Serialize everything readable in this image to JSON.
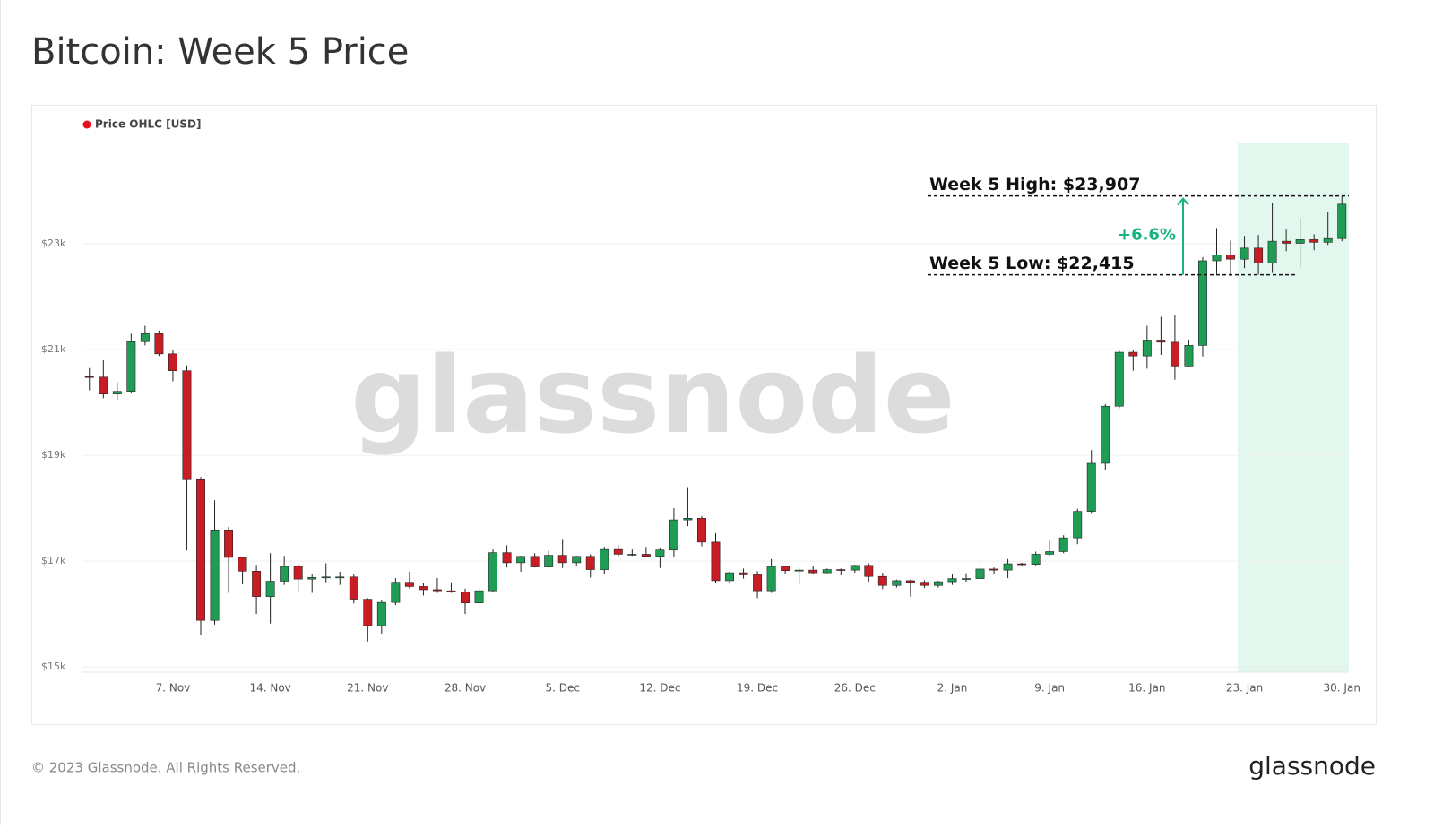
{
  "header": {
    "title": "Bitcoin: Week 5 Price"
  },
  "footer": {
    "copyright": "© 2023 Glassnode. All Rights Reserved.",
    "logo": "glassnode"
  },
  "chart_data": {
    "type": "candlestick",
    "watermark": "glassnode",
    "categories": [
      null,
      null,
      null,
      null,
      null,
      null,
      "7. Nov",
      null,
      null,
      null,
      null,
      null,
      null,
      "14. Nov",
      null,
      null,
      null,
      null,
      null,
      null,
      "21. Nov",
      null,
      null,
      null,
      null,
      null,
      null,
      "28. Nov",
      null,
      null,
      null,
      null,
      null,
      null,
      "5. Dec",
      null,
      null,
      null,
      null,
      null,
      null,
      "12. Dec",
      null,
      null,
      null,
      null,
      null,
      null,
      "19. Dec",
      null,
      null,
      null,
      null,
      null,
      null,
      "26. Dec",
      null,
      null,
      null,
      null,
      null,
      null,
      "2. Jan",
      null,
      null,
      null,
      null,
      null,
      null,
      "9. Jan",
      null,
      null,
      null,
      null,
      null,
      null,
      "16. Jan",
      null,
      null,
      null,
      null,
      null,
      null,
      "23. Jan",
      null,
      null,
      null,
      null,
      null,
      null,
      "30. Jan"
    ],
    "series": [
      {
        "name": "Price OHLC [USD]",
        "color": "#e8111b",
        "up_color": "#1f9d55",
        "down_color": "#c81d25",
        "open": [
          20490,
          20480,
          20160,
          20210,
          21150,
          21300,
          20920,
          20600,
          18540,
          15880,
          17590,
          17070,
          16810,
          16330,
          16620,
          16900,
          16660,
          16690,
          16700,
          16700,
          16280,
          15780,
          16220,
          16600,
          16520,
          16460,
          16440,
          16420,
          16210,
          16440,
          17160,
          16970,
          17090,
          16890,
          17110,
          16970,
          17090,
          16840,
          17220,
          17130,
          17130,
          17090,
          17210,
          17780,
          17810,
          17360,
          16630,
          16780,
          16740,
          16440,
          16900,
          16820,
          16830,
          16780,
          16840,
          16830,
          16920,
          16710,
          16540,
          16630,
          16600,
          16540,
          16610,
          16670,
          16670,
          16850,
          16830,
          16950,
          16940,
          17130,
          17180,
          17440,
          17940,
          18850,
          19930,
          20950,
          20880,
          21180,
          21140,
          20690,
          21080,
          22680,
          22790,
          22710,
          22920,
          22640,
          23050,
          23010,
          23080,
          23030,
          23100
        ],
        "high": [
          20650,
          20800,
          20380,
          21300,
          21450,
          21360,
          20990,
          20700,
          18590,
          18150,
          17650,
          17070,
          16930,
          17150,
          17100,
          16950,
          16750,
          16960,
          16800,
          16750,
          16300,
          16270,
          16680,
          16800,
          16580,
          16680,
          16600,
          16480,
          16530,
          17220,
          17300,
          17100,
          17150,
          17200,
          17420,
          17100,
          17130,
          17270,
          17300,
          17220,
          17270,
          17240,
          18000,
          18400,
          17850,
          17530,
          16800,
          16860,
          16810,
          17040,
          16900,
          16860,
          16900,
          16860,
          16860,
          16930,
          16960,
          16780,
          16650,
          16650,
          16640,
          16630,
          16760,
          16770,
          16980,
          16880,
          17040,
          16970,
          17180,
          17400,
          17490,
          17990,
          19100,
          19970,
          21000,
          21000,
          21450,
          21620,
          21650,
          21190,
          22750,
          23300,
          23060,
          23150,
          23170,
          23780,
          23270,
          23480,
          23180,
          23600,
          23907
        ],
        "low": [
          20230,
          20080,
          20050,
          20180,
          21080,
          20880,
          20400,
          17200,
          15600,
          15800,
          16400,
          16560,
          16000,
          15820,
          16550,
          16400,
          16400,
          16600,
          16550,
          16200,
          15480,
          15630,
          16170,
          16480,
          16350,
          16400,
          16400,
          16000,
          16110,
          16420,
          16880,
          16800,
          16880,
          16880,
          16870,
          16910,
          16690,
          16750,
          17080,
          17100,
          17070,
          16870,
          17080,
          17660,
          17280,
          16580,
          16590,
          16670,
          16300,
          16400,
          16750,
          16560,
          16760,
          16770,
          16730,
          16780,
          16610,
          16470,
          16500,
          16330,
          16490,
          16500,
          16550,
          16610,
          16660,
          16750,
          16680,
          16910,
          16920,
          17100,
          17150,
          17320,
          17910,
          18730,
          19890,
          20600,
          20640,
          20900,
          20430,
          20670,
          20870,
          22430,
          22390,
          22540,
          22415,
          22450,
          22860,
          22560,
          22880,
          22980,
          23050
        ],
        "close": [
          20480,
          20160,
          20210,
          21150,
          21300,
          20920,
          20600,
          18540,
          15880,
          17590,
          17070,
          16810,
          16330,
          16620,
          16900,
          16660,
          16690,
          16700,
          16700,
          16280,
          15780,
          16220,
          16600,
          16520,
          16460,
          16440,
          16420,
          16210,
          16440,
          17160,
          16970,
          17090,
          16890,
          17110,
          16970,
          17090,
          16840,
          17220,
          17130,
          17130,
          17090,
          17210,
          17780,
          17810,
          17360,
          16630,
          16780,
          16740,
          16440,
          16900,
          16820,
          16830,
          16780,
          16840,
          16830,
          16920,
          16710,
          16540,
          16630,
          16600,
          16540,
          16610,
          16670,
          16670,
          16850,
          16830,
          16950,
          16940,
          17130,
          17180,
          17440,
          17940,
          18850,
          19930,
          20950,
          20880,
          21180,
          21140,
          20690,
          21080,
          22680,
          22790,
          22710,
          22920,
          22640,
          23050,
          23010,
          23080,
          23030,
          23100,
          23750
        ]
      }
    ],
    "ylim": [
      14900,
      24900
    ],
    "yticks": [
      {
        "value": 15000,
        "label": "$15k"
      },
      {
        "value": 17000,
        "label": "$17k"
      },
      {
        "value": 19000,
        "label": "$19k"
      },
      {
        "value": 21000,
        "label": "$21k"
      },
      {
        "value": 23000,
        "label": "$23k"
      }
    ],
    "grid": true,
    "highlight": {
      "from": "23. Jan",
      "color": "#e2f7ee"
    },
    "reference_lines": [
      {
        "label": "Week 5 High: $23,907",
        "value": 23907
      },
      {
        "label": "Week 5 Low: $22,415",
        "value": 22415
      }
    ],
    "change": {
      "value": 6.6,
      "label": "+6.6%",
      "color": "#19b37c"
    }
  }
}
